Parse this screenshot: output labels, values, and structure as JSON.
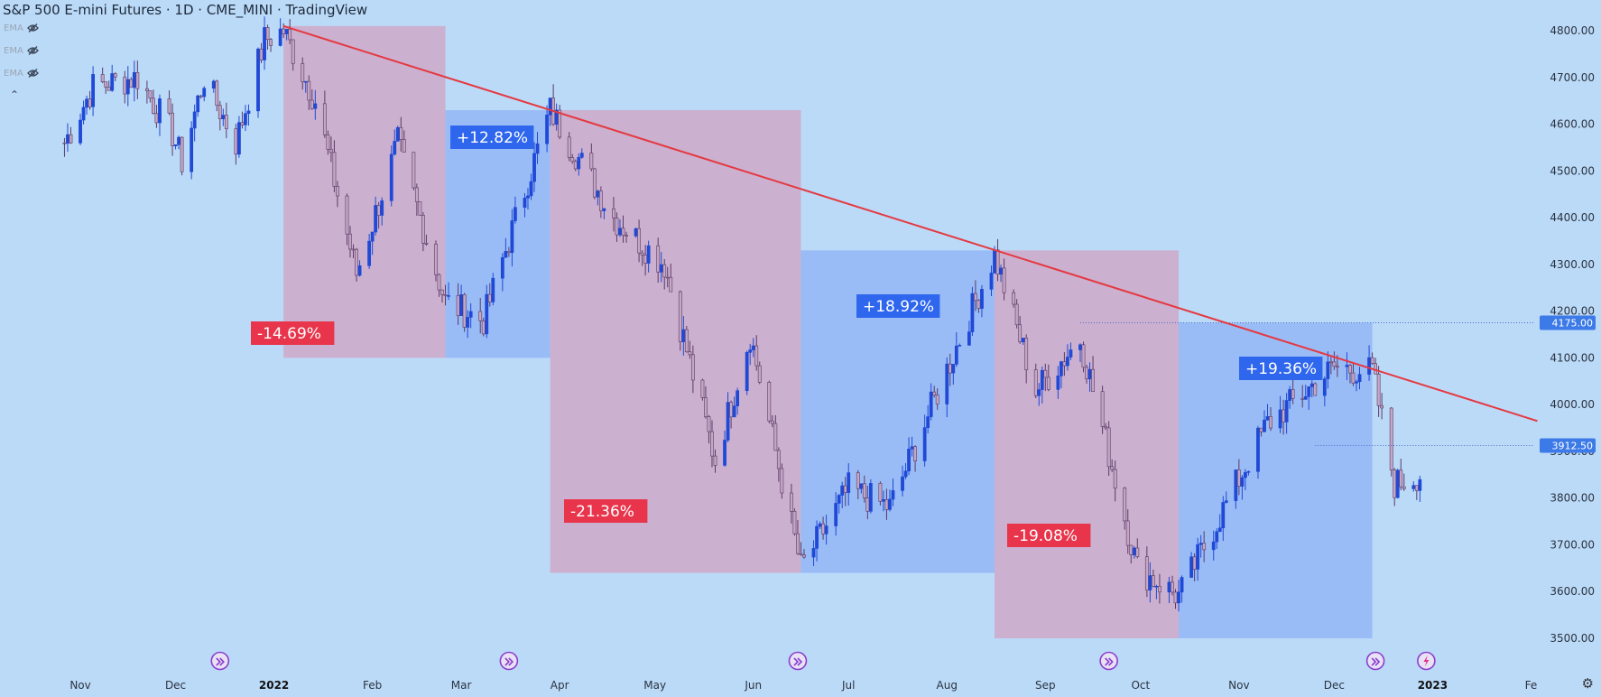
{
  "header": {
    "title": "S&P 500 E-mini Futures · 1D · CME_MINI · TradingView",
    "indicators": [
      "EMA",
      "EMA",
      "EMA"
    ]
  },
  "colors": {
    "background": "#bbdaf8",
    "up_candle": "#1f49d6",
    "down_candle": "#c4a7c5",
    "down_box": "#cbb0cf",
    "up_box": "#9abcf6",
    "trendline": "#e53840",
    "neg_label": "#e8354b",
    "pos_label": "#2e66ee",
    "event_icon": "#8a3fd0"
  },
  "chart_data": {
    "type": "candlestick",
    "title": "S&P 500 E-mini Futures · 1D · CME_MINI · TradingView",
    "ylim": [
      3450,
      4830
    ],
    "y_ticks": [
      "4800.00",
      "4700.00",
      "4600.00",
      "4500.00",
      "4400.00",
      "4300.00",
      "4200.00",
      "4100.00",
      "4000.00",
      "3900.00",
      "3800.00",
      "3700.00",
      "3600.00",
      "3500.00"
    ],
    "x_labels": [
      {
        "label": "Nov",
        "date": "2021-11-01",
        "bold": false
      },
      {
        "label": "Dec",
        "date": "2021-12-01",
        "bold": false
      },
      {
        "label": "2022",
        "date": "2022-01-01",
        "bold": true
      },
      {
        "label": "Feb",
        "date": "2022-02-01",
        "bold": false
      },
      {
        "label": "Mar",
        "date": "2022-03-01",
        "bold": false
      },
      {
        "label": "Apr",
        "date": "2022-04-01",
        "bold": false
      },
      {
        "label": "May",
        "date": "2022-05-01",
        "bold": false
      },
      {
        "label": "Jun",
        "date": "2022-06-01",
        "bold": false
      },
      {
        "label": "Jul",
        "date": "2022-07-01",
        "bold": false
      },
      {
        "label": "Aug",
        "date": "2022-08-01",
        "bold": false
      },
      {
        "label": "Sep",
        "date": "2022-09-01",
        "bold": false
      },
      {
        "label": "Oct",
        "date": "2022-10-01",
        "bold": false
      },
      {
        "label": "Nov",
        "date": "2022-11-01",
        "bold": false
      },
      {
        "label": "Dec",
        "date": "2022-12-01",
        "bold": false
      },
      {
        "label": "2023",
        "date": "2023-01-01",
        "bold": true
      },
      {
        "label": "Fe",
        "date": "2023-02-01",
        "bold": false
      }
    ],
    "price_path": [
      [
        "2021-10-27",
        4560
      ],
      [
        "2021-11-05",
        4680
      ],
      [
        "2021-11-19",
        4700
      ],
      [
        "2021-11-30",
        4580
      ],
      [
        "2021-12-03",
        4520
      ],
      [
        "2021-12-10",
        4700
      ],
      [
        "2021-12-20",
        4560
      ],
      [
        "2021-12-29",
        4780
      ],
      [
        "2022-01-04",
        4800
      ],
      [
        "2022-01-14",
        4650
      ],
      [
        "2022-01-27",
        4280
      ],
      [
        "2022-02-09",
        4560
      ],
      [
        "2022-02-24",
        4220
      ],
      [
        "2022-03-08",
        4180
      ],
      [
        "2022-03-29",
        4630
      ],
      [
        "2022-04-18",
        4400
      ],
      [
        "2022-05-04",
        4300
      ],
      [
        "2022-05-20",
        3880
      ],
      [
        "2022-05-31",
        4150
      ],
      [
        "2022-06-16",
        3650
      ],
      [
        "2022-07-01",
        3820
      ],
      [
        "2022-07-14",
        3780
      ],
      [
        "2022-08-16",
        4320
      ],
      [
        "2022-08-29",
        4030
      ],
      [
        "2022-09-12",
        4140
      ],
      [
        "2022-09-30",
        3650
      ],
      [
        "2022-10-13",
        3590
      ],
      [
        "2022-11-10",
        3960
      ],
      [
        "2022-12-01",
        4080
      ],
      [
        "2022-12-13",
        4070
      ],
      [
        "2022-12-20",
        3830
      ],
      [
        "2022-12-28",
        3850
      ]
    ],
    "ranges": [
      {
        "kind": "down",
        "label": "-14.69%",
        "x0": "2022-01-04",
        "x1": "2022-02-24",
        "y_top": 4810,
        "y_bot": 4100
      },
      {
        "kind": "up",
        "label": "+12.82%",
        "x0": "2022-02-24",
        "x1": "2022-03-29",
        "y_top": 4630,
        "y_bot": 4100
      },
      {
        "kind": "down",
        "label": "-21.36%",
        "x0": "2022-03-29",
        "x1": "2022-06-16",
        "y_top": 4630,
        "y_bot": 3640
      },
      {
        "kind": "up",
        "label": "+18.92%",
        "x0": "2022-06-16",
        "x1": "2022-08-16",
        "y_top": 4330,
        "y_bot": 3640
      },
      {
        "kind": "down",
        "label": "-19.08%",
        "x0": "2022-08-16",
        "x1": "2022-10-13",
        "y_top": 4330,
        "y_bot": 3500
      },
      {
        "kind": "up",
        "label": "+19.36%",
        "x0": "2022-10-13",
        "x1": "2022-12-13",
        "y_top": 4175,
        "y_bot": 3500
      }
    ],
    "trendline": {
      "from": [
        "2022-01-04",
        4810
      ],
      "to": [
        "2023-02-03",
        3965
      ]
    },
    "price_lines": [
      {
        "value": 4175,
        "label": "4175.00",
        "from": "2022-09-12"
      },
      {
        "value": 3912.5,
        "label": "3912.50",
        "from": "2022-11-25"
      }
    ],
    "events": [
      {
        "date": "2021-12-15",
        "icon": "arrow"
      },
      {
        "date": "2022-03-16",
        "icon": "arrow"
      },
      {
        "date": "2022-06-15",
        "icon": "arrow"
      },
      {
        "date": "2022-09-21",
        "icon": "arrow"
      },
      {
        "date": "2022-12-14",
        "icon": "arrow"
      },
      {
        "date": "2022-12-30",
        "icon": "bolt"
      }
    ]
  }
}
